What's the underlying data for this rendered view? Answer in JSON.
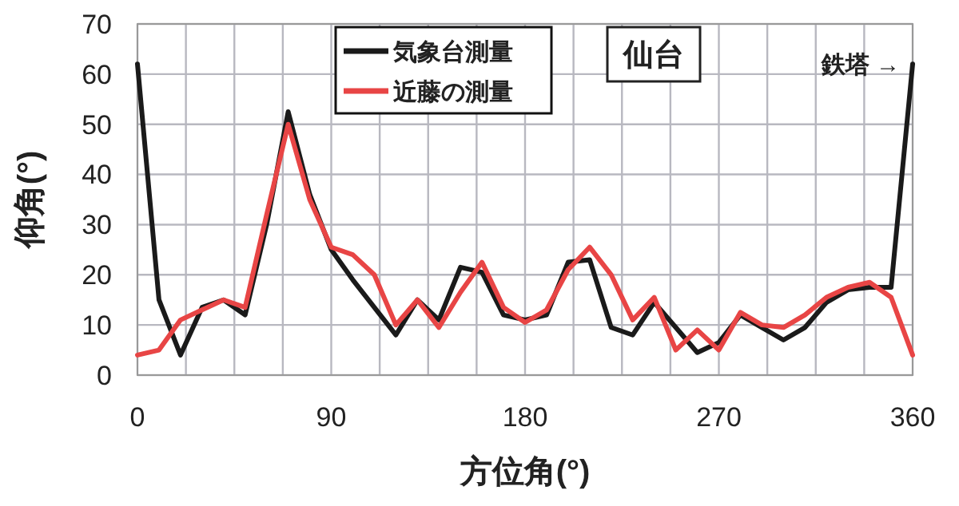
{
  "chart_data": {
    "type": "line",
    "xlabel": "方位角(°)",
    "ylabel": "仰角(°)",
    "x": [
      0,
      10,
      20,
      30,
      40,
      50,
      60,
      70,
      80,
      90,
      100,
      110,
      120,
      130,
      140,
      150,
      160,
      170,
      180,
      190,
      200,
      210,
      220,
      230,
      240,
      250,
      260,
      270,
      280,
      290,
      300,
      310,
      320,
      330,
      340,
      350,
      360
    ],
    "series": [
      {
        "name": "気象台測量",
        "color": "#1a1a1a",
        "values": [
          62,
          15,
          4,
          13.5,
          15,
          12,
          30,
          52.5,
          36,
          25,
          19,
          13.5,
          8,
          15,
          11,
          21.5,
          20.5,
          12,
          11,
          12,
          22.5,
          23,
          9.5,
          8,
          14.5,
          9.5,
          4.5,
          6.5,
          12,
          9.5,
          7,
          9.5,
          14.5,
          17,
          17.5,
          17.5,
          62
        ]
      },
      {
        "name": "近藤の測量",
        "color": "#e84545",
        "values": [
          4,
          5,
          11,
          13,
          15,
          13.5,
          32,
          50,
          35,
          25.5,
          24,
          20,
          10,
          15,
          9.5,
          16.5,
          22.5,
          13.5,
          10.5,
          13,
          21,
          25.5,
          20,
          11,
          15.5,
          5,
          9,
          5,
          12.5,
          10,
          9.5,
          12,
          15.5,
          17.5,
          18.5,
          15.5,
          4
        ]
      }
    ],
    "xlim": [
      0,
      360
    ],
    "xticks": [
      0,
      {
        "value": 22.5,
        "label": null
      },
      {
        "value": 45,
        "label": null
      },
      {
        "value": 67.5,
        "label": null
      },
      90,
      {
        "value": 112.5,
        "label": null
      },
      {
        "value": 135,
        "label": null
      },
      {
        "value": 157.5,
        "label": null
      },
      180,
      {
        "value": 202.5,
        "label": null
      },
      {
        "value": 225,
        "label": null
      },
      {
        "value": 247.5,
        "label": null
      },
      270,
      {
        "value": 292.5,
        "label": null
      },
      {
        "value": 315,
        "label": null
      },
      {
        "value": 337.5,
        "label": null
      },
      360
    ],
    "ylim": [
      0,
      70
    ],
    "yticks": [
      0,
      10,
      20,
      30,
      40,
      50,
      60,
      70
    ],
    "grid": true,
    "legend": "top",
    "line_style": "solid",
    "marker": "none",
    "annotations": [
      "仙台",
      {
        "text": "鉄塔 →",
        "x": 360,
        "y": 62
      }
    ]
  }
}
